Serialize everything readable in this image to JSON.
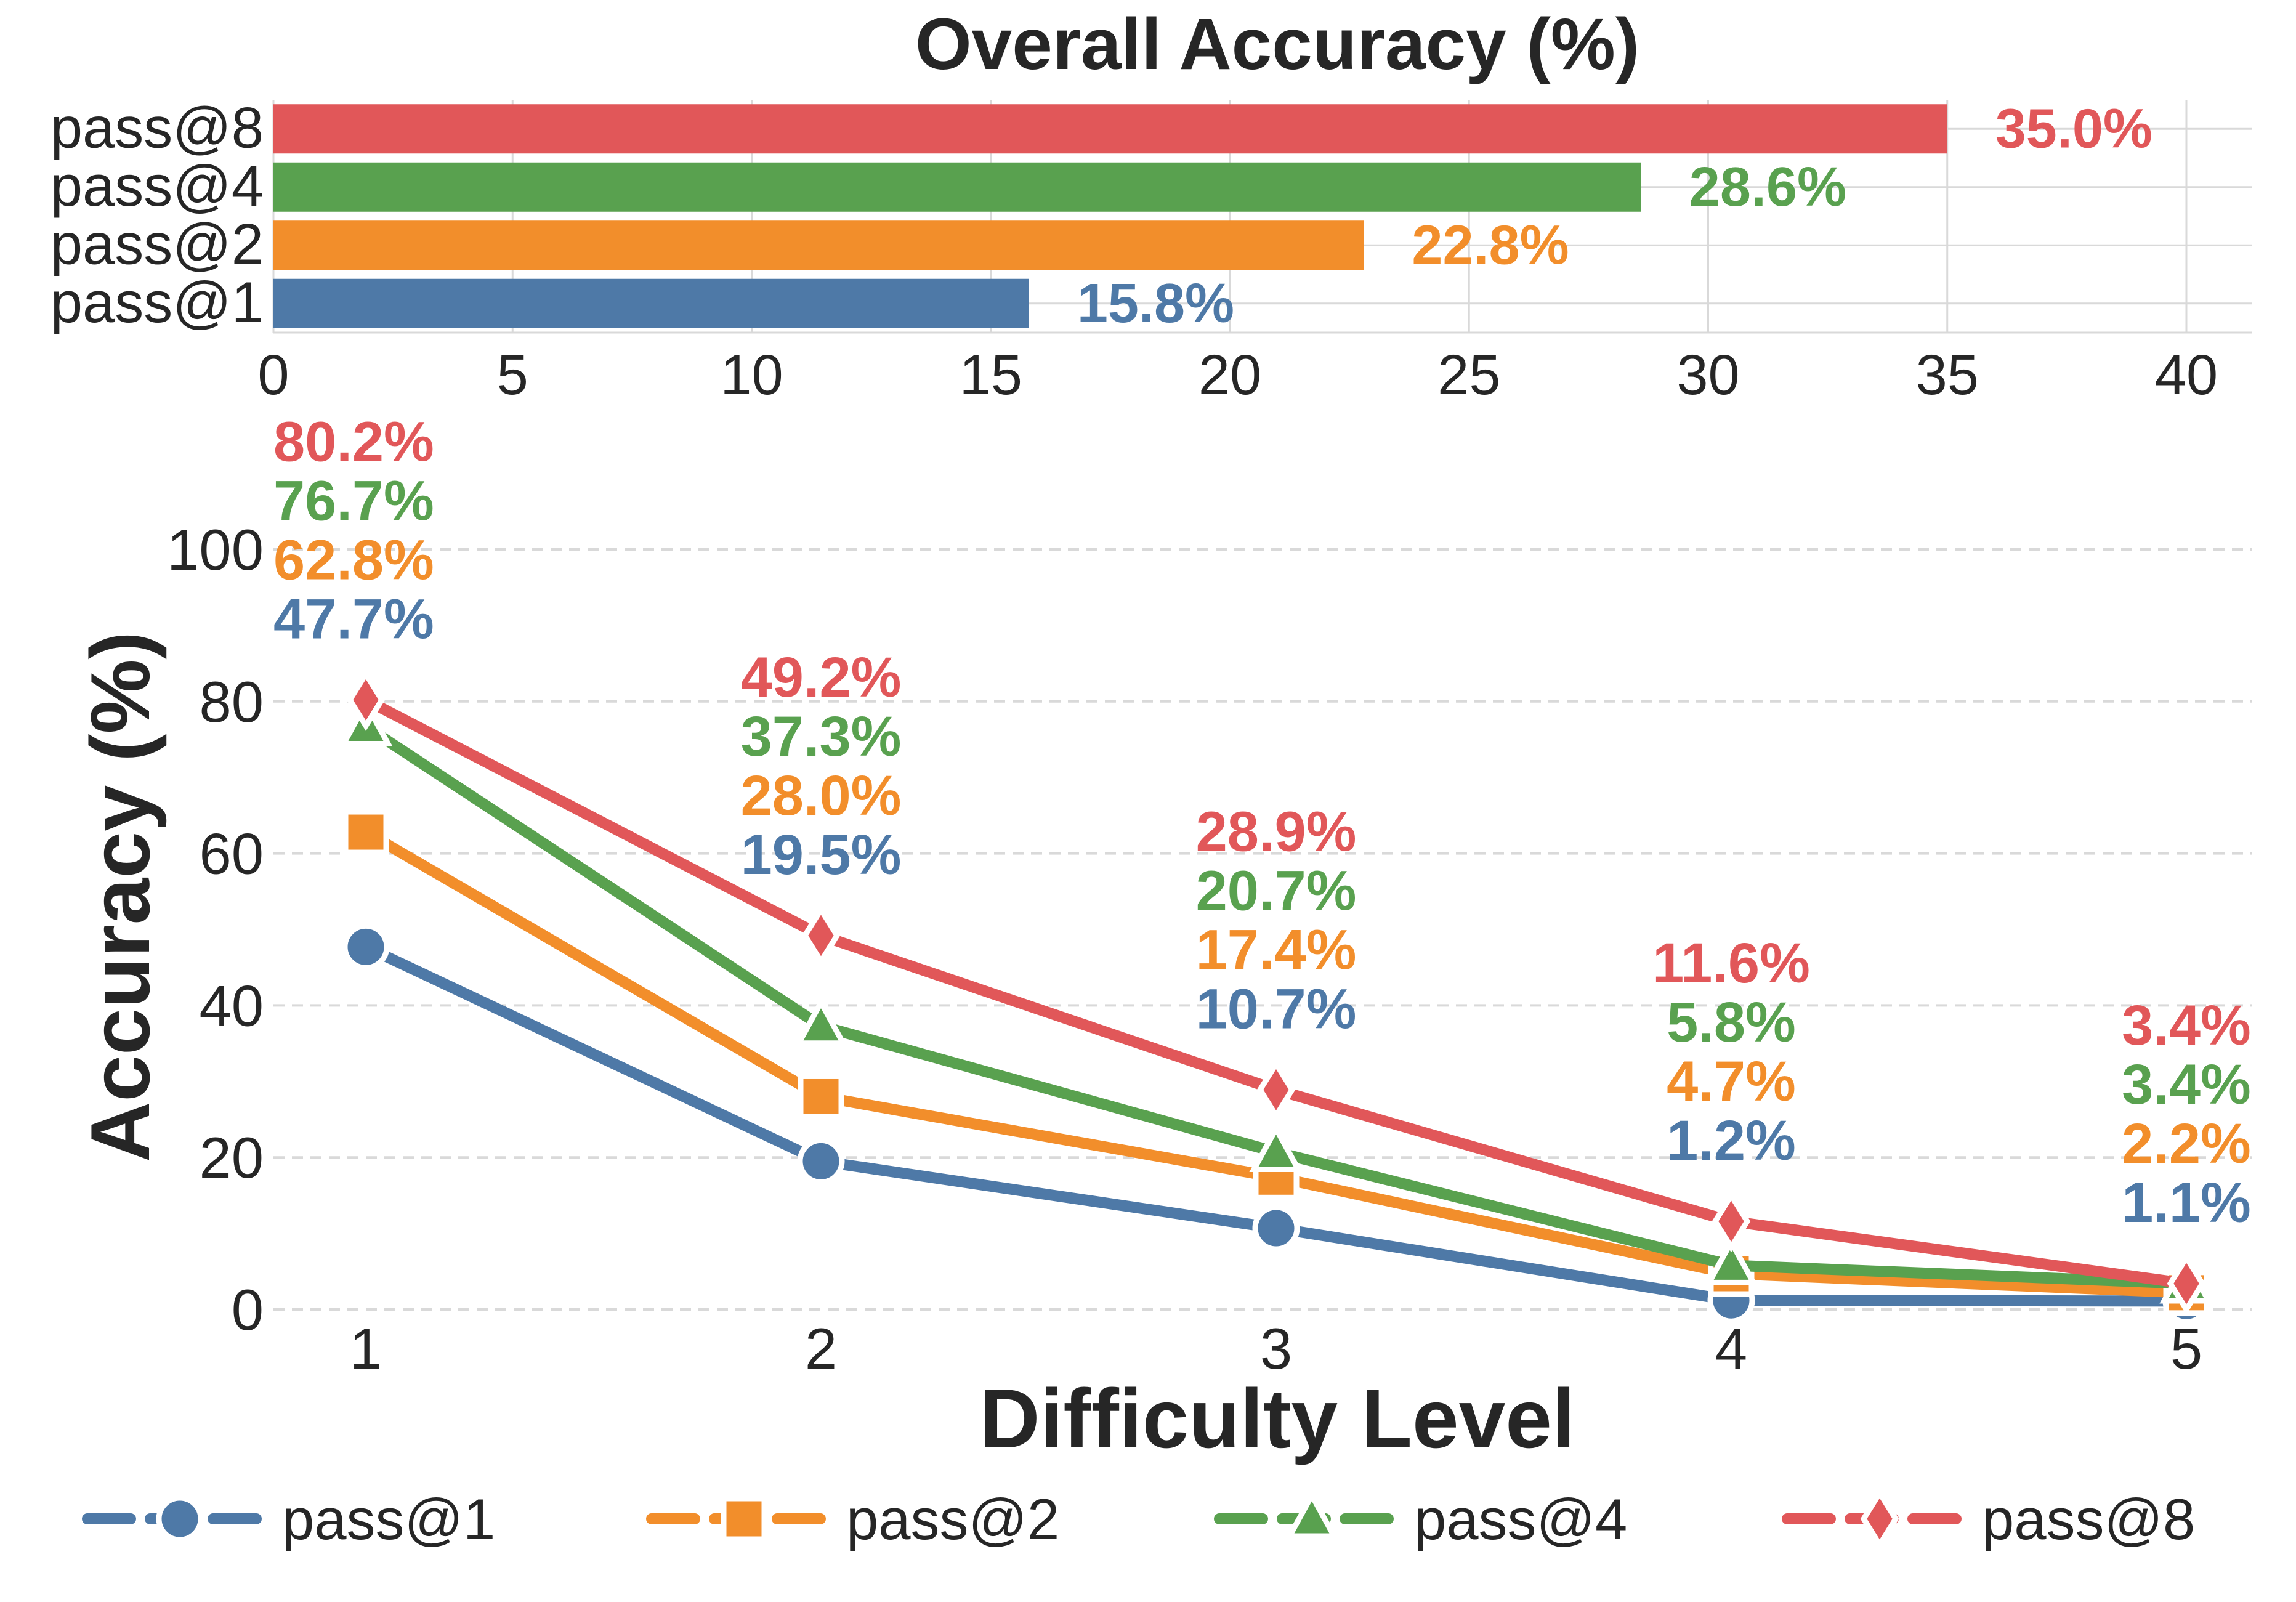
{
  "chart_data": [
    {
      "type": "bar",
      "orientation": "horizontal",
      "title": "Overall Accuracy (%)",
      "categories": [
        "pass@1",
        "pass@2",
        "pass@4",
        "pass@8"
      ],
      "values": [
        15.8,
        22.8,
        28.6,
        35.0
      ],
      "value_labels": [
        "15.8%",
        "22.8%",
        "28.6%",
        "35.0%"
      ],
      "colors": [
        "#4e79a7",
        "#f28e2b",
        "#59a14f",
        "#e15759"
      ],
      "xlim": [
        0,
        40
      ],
      "xticks": [
        0,
        5,
        10,
        15,
        20,
        25,
        30,
        35,
        40
      ],
      "grid": true
    },
    {
      "type": "line",
      "xlabel": "Difficulty Level",
      "ylabel": "Accuracy (%)",
      "x": [
        1,
        2,
        3,
        4,
        5
      ],
      "ylim": [
        0,
        113
      ],
      "yticks": [
        0,
        20,
        40,
        60,
        80,
        100
      ],
      "grid": "y-dashed",
      "legend": "bottom",
      "series": [
        {
          "name": "pass@1",
          "color": "#4e79a7",
          "marker": "circle",
          "values": [
            47.7,
            19.5,
            10.7,
            1.2,
            1.1
          ],
          "labels": [
            "47.7%",
            "19.5%",
            "10.7%",
            "1.2%",
            "1.1%"
          ]
        },
        {
          "name": "pass@2",
          "color": "#f28e2b",
          "marker": "square",
          "values": [
            62.8,
            28.0,
            17.4,
            4.7,
            2.2
          ],
          "labels": [
            "62.8%",
            "28.0%",
            "17.4%",
            "4.7%",
            "2.2%"
          ]
        },
        {
          "name": "pass@4",
          "color": "#59a14f",
          "marker": "triangle",
          "values": [
            76.7,
            37.3,
            20.7,
            5.8,
            3.4
          ],
          "labels": [
            "76.7%",
            "37.3%",
            "20.7%",
            "5.8%",
            "3.4%"
          ]
        },
        {
          "name": "pass@8",
          "color": "#e15759",
          "marker": "diamond",
          "values": [
            80.2,
            49.2,
            28.9,
            11.6,
            3.4
          ],
          "labels": [
            "80.2%",
            "49.2%",
            "28.9%",
            "11.6%",
            "3.4%"
          ]
        }
      ]
    }
  ]
}
